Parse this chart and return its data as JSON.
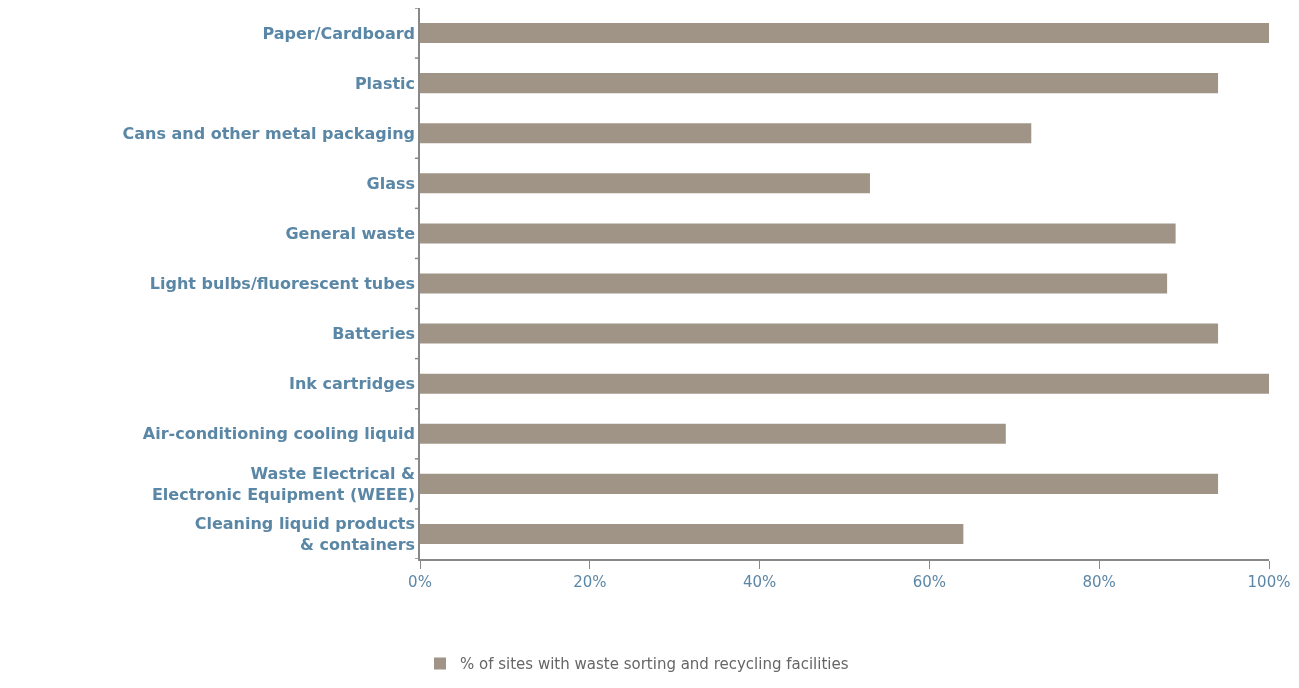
{
  "chart_data": {
    "type": "bar",
    "orientation": "horizontal",
    "categories": [
      "Paper/Cardboard",
      "Plastic",
      "Cans and other metal packaging",
      "Glass",
      "General waste",
      "Light bulbs/fluorescent tubes",
      "Batteries",
      "Ink cartridges",
      "Air-conditioning cooling liquid",
      "Waste Electrical & Electronic Equipment (WEEE)",
      "Cleaning liquid products & containers"
    ],
    "series": [
      {
        "name": "% of sites with waste sorting and recycling facilities",
        "color": "#a09487",
        "values": [
          100,
          94,
          72,
          53,
          89,
          88,
          94,
          100,
          69,
          94,
          64
        ]
      }
    ],
    "xlim": [
      0,
      100
    ],
    "xticks": [
      {
        "value": 0,
        "label": "0%"
      },
      {
        "value": 20,
        "label": "20%"
      },
      {
        "value": 40,
        "label": "40%"
      },
      {
        "value": 60,
        "label": "60%"
      },
      {
        "value": 80,
        "label": "80%"
      },
      {
        "value": 100,
        "label": "100%"
      }
    ],
    "grid": false,
    "legend": "bottom left"
  }
}
